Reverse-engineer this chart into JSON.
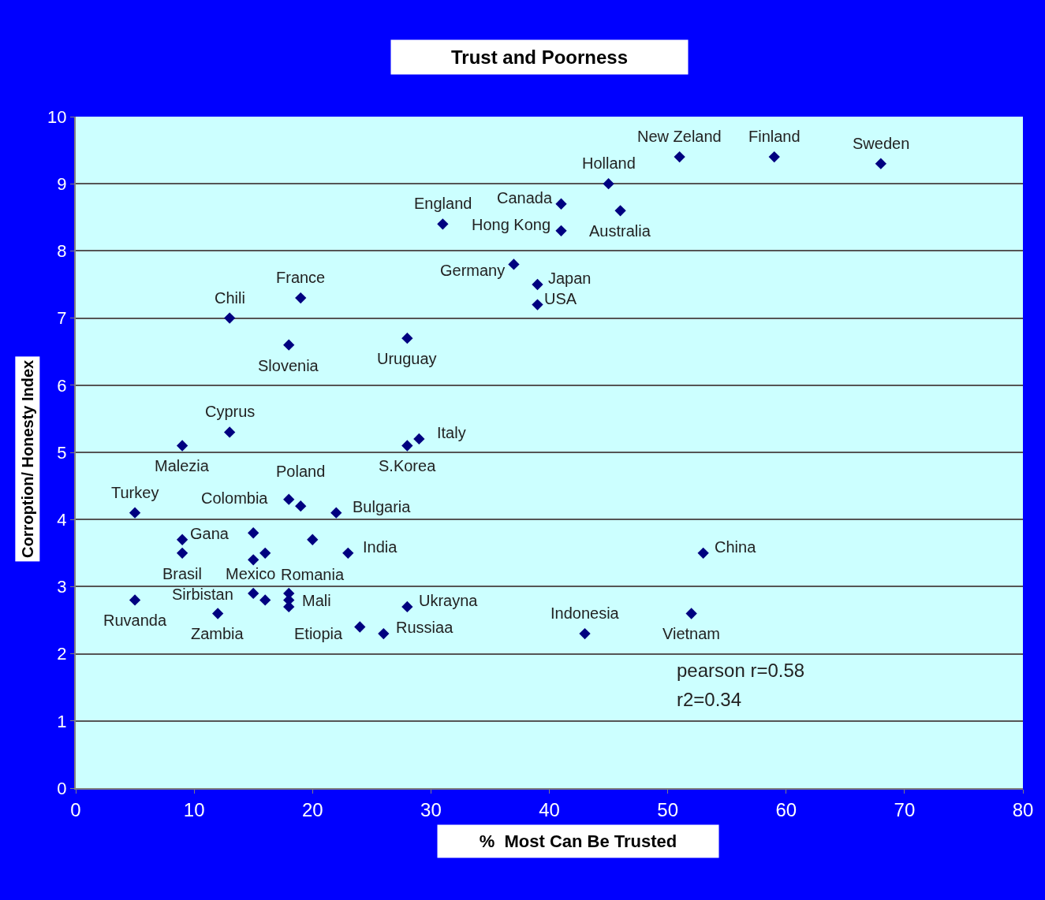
{
  "chart_data": {
    "type": "scatter",
    "title": "Trust and Poorness",
    "xlabel": "%  Most Can Be Trusted",
    "ylabel": "Corroption/ Honesty Index",
    "x": [
      51,
      59,
      68,
      45,
      41,
      46,
      41,
      31,
      37,
      39,
      39,
      19,
      13,
      18,
      28,
      13,
      9,
      29,
      28,
      5,
      9,
      9,
      5,
      12,
      15,
      18,
      19,
      22,
      23,
      20,
      16,
      15,
      15,
      16,
      18,
      18,
      18,
      24,
      26,
      28,
      53,
      52,
      43
    ],
    "values": [
      9.4,
      9.4,
      9.3,
      9.0,
      8.7,
      8.6,
      8.3,
      8.4,
      7.8,
      7.5,
      7.2,
      7.3,
      7.0,
      6.6,
      6.7,
      5.3,
      5.1,
      5.2,
      5.1,
      4.1,
      3.7,
      3.5,
      2.8,
      2.6,
      3.8,
      4.3,
      4.2,
      4.1,
      3.5,
      3.7,
      3.5,
      3.4,
      2.9,
      2.8,
      2.9,
      2.8,
      2.7,
      2.4,
      2.3,
      2.7,
      3.5,
      2.6,
      2.3
    ],
    "color": "#000080",
    "marker": "diamond",
    "xlim": [
      0,
      80
    ],
    "ylim": [
      0,
      10
    ],
    "xticks": [
      0,
      10,
      20,
      30,
      40,
      50,
      60,
      70,
      80
    ],
    "yticks": [
      0,
      1,
      2,
      3,
      4,
      5,
      6,
      7,
      8,
      9,
      10
    ],
    "grid": "y",
    "legend": false,
    "annotations": [
      {
        "text": "New Zeland",
        "x": 51,
        "y": 9.4
      },
      {
        "text": "Finland",
        "x": 59,
        "y": 9.4
      },
      {
        "text": "Sweden",
        "x": 68,
        "y": 9.3
      },
      {
        "text": "Holland",
        "x": 45,
        "y": 9.0
      },
      {
        "text": "Canada",
        "x": 41,
        "y": 8.7
      },
      {
        "text": "Australia",
        "x": 46,
        "y": 8.6
      },
      {
        "text": "Hong Kong",
        "x": 41,
        "y": 8.3
      },
      {
        "text": "England",
        "x": 31,
        "y": 8.4
      },
      {
        "text": "Germany",
        "x": 37,
        "y": 7.8
      },
      {
        "text": "Japan",
        "x": 39,
        "y": 7.5
      },
      {
        "text": "USA",
        "x": 39,
        "y": 7.2
      },
      {
        "text": "France",
        "x": 19,
        "y": 7.3
      },
      {
        "text": "Chili",
        "x": 13,
        "y": 7.0
      },
      {
        "text": "Slovenia",
        "x": 18,
        "y": 6.6
      },
      {
        "text": "Uruguay",
        "x": 28,
        "y": 6.7
      },
      {
        "text": "Cyprus",
        "x": 13,
        "y": 5.3
      },
      {
        "text": "Malezia",
        "x": 9,
        "y": 5.1
      },
      {
        "text": "Italy",
        "x": 29,
        "y": 5.2
      },
      {
        "text": "S.Korea",
        "x": 28,
        "y": 5.1
      },
      {
        "text": "Turkey",
        "x": 5,
        "y": 4.1
      },
      {
        "text": "Gana",
        "x": 9,
        "y": 3.7
      },
      {
        "text": "Brasil",
        "x": 9,
        "y": 3.5
      },
      {
        "text": "Ruvanda",
        "x": 5,
        "y": 2.8
      },
      {
        "text": "Zambia",
        "x": 12,
        "y": 2.6
      },
      {
        "text": "Colombia",
        "x": 15,
        "y": 3.8
      },
      {
        "text": "Poland",
        "x": 19,
        "y": 4.2
      },
      {
        "text": "Bulgaria",
        "x": 22,
        "y": 4.1
      },
      {
        "text": "India",
        "x": 23,
        "y": 3.5
      },
      {
        "text": "Romania",
        "x": 20,
        "y": 3.7
      },
      {
        "text": "Mexico",
        "x": 16,
        "y": 3.5
      },
      {
        "text": "Sirbistan",
        "x": 15,
        "y": 3.4
      },
      {
        "text": "Mali",
        "x": 18,
        "y": 2.7
      },
      {
        "text": "Etiopia",
        "x": 24,
        "y": 2.4
      },
      {
        "text": "Russiaa",
        "x": 26,
        "y": 2.3
      },
      {
        "text": "Ukrayna",
        "x": 28,
        "y": 2.7
      },
      {
        "text": "China",
        "x": 53,
        "y": 3.5
      },
      {
        "text": "Vietnam",
        "x": 52,
        "y": 2.6
      },
      {
        "text": "Indonesia",
        "x": 43,
        "y": 2.3
      },
      "pearson r=0.58",
      "r2=0.34"
    ]
  }
}
